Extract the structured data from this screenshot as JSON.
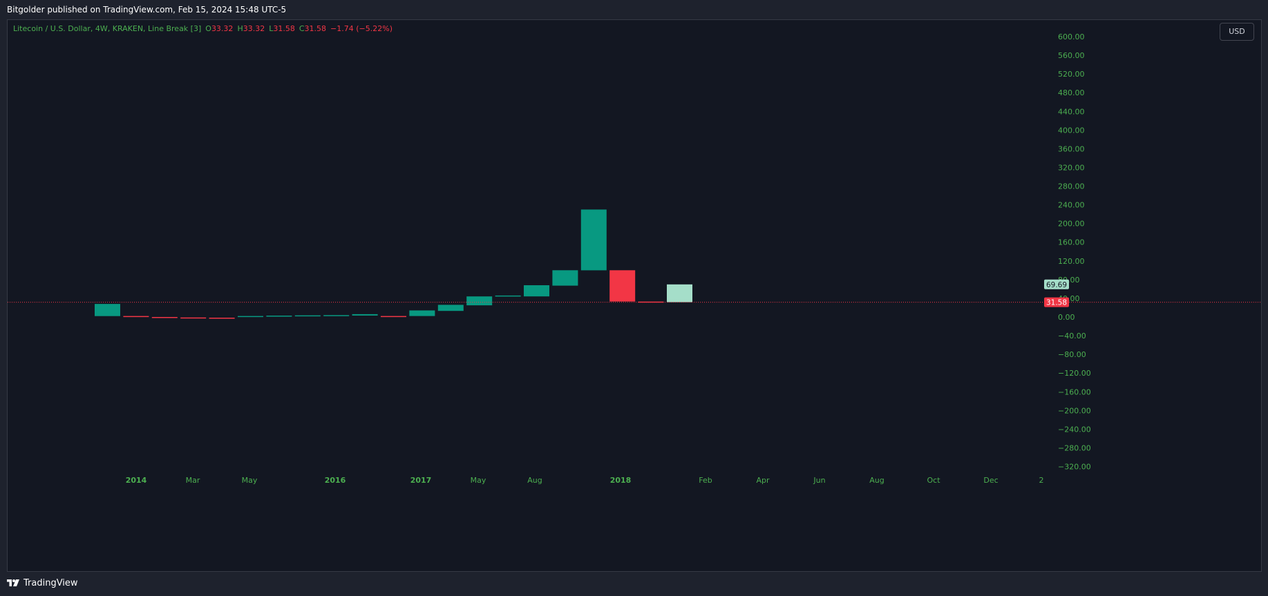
{
  "publish_line": "Bitgolder published on TradingView.com, Feb 15, 2024 15:48 UTC-5",
  "legend": {
    "title": "Litecoin / U.S. Dollar, 4W, KRAKEN, Line Break [3]",
    "o_label": "O",
    "o_value": "33.32",
    "h_label": "H",
    "h_value": "33.32",
    "l_label": "L",
    "l_value": "31.58",
    "c_label": "C",
    "c_value": "31.58",
    "change": "−1.74 (−5.22%)"
  },
  "currency_button": "USD",
  "brand_name": "TradingView",
  "colors": {
    "up": "#089981",
    "down": "#f23645",
    "projection": "#a5dec9",
    "axis_text": "#4caf50",
    "background": "#131722"
  },
  "chart_data": {
    "type": "line-break",
    "y_ticks": [
      "600.00",
      "560.00",
      "520.00",
      "480.00",
      "440.00",
      "400.00",
      "360.00",
      "320.00",
      "280.00",
      "240.00",
      "200.00",
      "160.00",
      "120.00",
      "80.00",
      "40.00",
      "0.00",
      "−40.00",
      "−80.00",
      "−120.00",
      "−160.00",
      "−200.00",
      "−240.00",
      "−280.00",
      "−320.00"
    ],
    "y_tick_values": [
      600,
      560,
      520,
      480,
      440,
      400,
      360,
      320,
      280,
      240,
      200,
      160,
      120,
      80,
      40,
      0,
      -40,
      -80,
      -120,
      -160,
      -200,
      -240,
      -280,
      -320
    ],
    "x_ticks": [
      {
        "label": "2014",
        "bold": true
      },
      {
        "label": "Mar",
        "bold": false
      },
      {
        "label": "May",
        "bold": false
      },
      {
        "label": "2016",
        "bold": true
      },
      {
        "label": "2017",
        "bold": true
      },
      {
        "label": "May",
        "bold": false
      },
      {
        "label": "Aug",
        "bold": false
      },
      {
        "label": "2018",
        "bold": true
      },
      {
        "label": "Feb",
        "bold": false
      },
      {
        "label": "Apr",
        "bold": false
      },
      {
        "label": "Jun",
        "bold": false
      },
      {
        "label": "Aug",
        "bold": false
      },
      {
        "label": "Oct",
        "bold": false
      },
      {
        "label": "Dec",
        "bold": false
      },
      {
        "label": "2",
        "bold": false
      }
    ],
    "boxes": [
      {
        "open": 2,
        "close": 28,
        "dir": "up"
      },
      {
        "open": 2,
        "close": 0,
        "dir": "down"
      },
      {
        "open": 0,
        "close": -1,
        "dir": "down"
      },
      {
        "open": -1,
        "close": -1.5,
        "dir": "down"
      },
      {
        "open": -1.5,
        "close": -2.5,
        "dir": "down"
      },
      {
        "open": 0,
        "close": 2,
        "dir": "up"
      },
      {
        "open": 2,
        "close": 3,
        "dir": "up"
      },
      {
        "open": 3,
        "close": 3.5,
        "dir": "up"
      },
      {
        "open": 3.5,
        "close": 4,
        "dir": "up"
      },
      {
        "open": 3,
        "close": 6,
        "dir": "up"
      },
      {
        "open": 2,
        "close": 1,
        "dir": "down"
      },
      {
        "open": 2,
        "close": 14,
        "dir": "up"
      },
      {
        "open": 13,
        "close": 26,
        "dir": "up"
      },
      {
        "open": 25,
        "close": 44,
        "dir": "up"
      },
      {
        "open": 44,
        "close": 46,
        "dir": "up"
      },
      {
        "open": 44,
        "close": 68,
        "dir": "up"
      },
      {
        "open": 67,
        "close": 100,
        "dir": "up"
      },
      {
        "open": 100,
        "close": 230,
        "dir": "up"
      },
      {
        "open": 100,
        "close": 33,
        "dir": "down"
      },
      {
        "open": 33,
        "close": 31.58,
        "dir": "down"
      },
      {
        "open": 31.58,
        "close": 69.69,
        "dir": "projection"
      }
    ],
    "last_price": "31.58",
    "last_price_value": 31.58,
    "projection_price": "69.69",
    "projection_price_value": 69.69,
    "ylim": [
      -332,
      612
    ]
  }
}
